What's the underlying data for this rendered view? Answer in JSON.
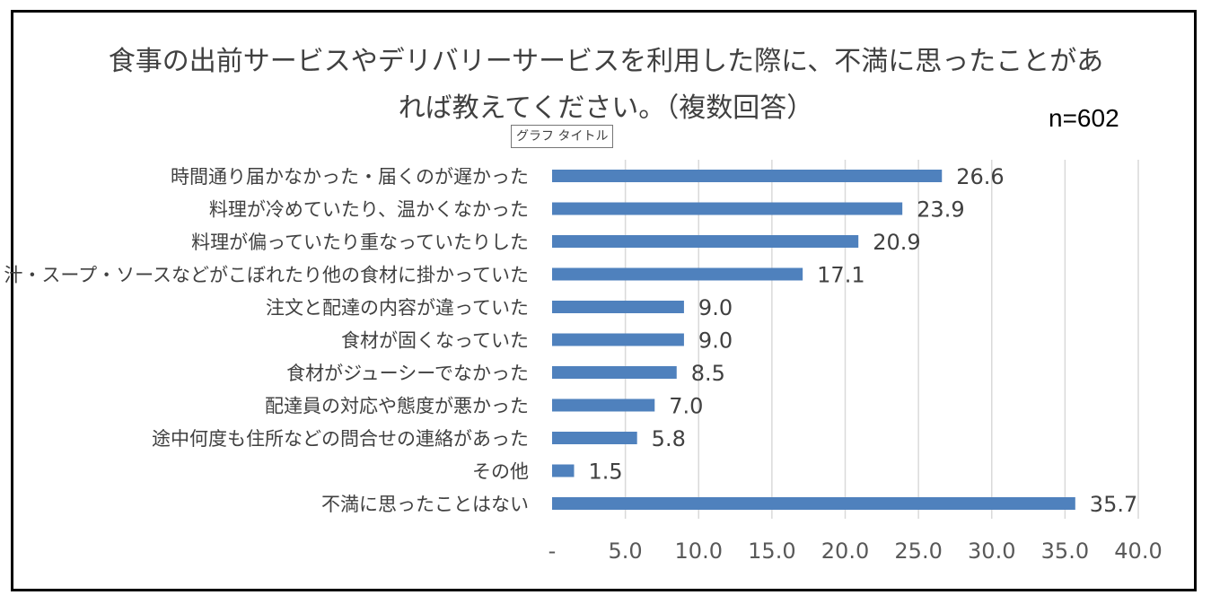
{
  "chart_data": {
    "type": "bar",
    "orientation": "horizontal",
    "title_line1": "食事の出前サービスやデリバリーサービスを利用した際に、不満に思ったことがあ",
    "title_line2": "れば教えてください。（複数回答）",
    "n_label": "n=602",
    "tooltip": "グラフ タイトル",
    "categories": [
      "時間通り届かなかった・届くのが遅かった",
      "料理が冷めていたり、温かくなかった",
      "料理が偏っていたり重なっていたりした",
      "汁・スープ・ソースなどがこぼれたり他の食材に掛かっていた",
      "注文と配達の内容が違っていた",
      "食材が固くなっていた",
      "食材がジューシーでなかった",
      "配達員の対応や態度が悪かった",
      "途中何度も住所などの問合せの連絡があった",
      "その他",
      "不満に思ったことはない"
    ],
    "values": [
      26.6,
      23.9,
      20.9,
      17.1,
      9.0,
      9.0,
      8.5,
      7.0,
      5.8,
      1.5,
      35.7
    ],
    "value_labels": [
      "26.6",
      "23.9",
      "20.9",
      "17.1",
      "9.0",
      "9.0",
      "8.5",
      "7.0",
      "5.8",
      "1.5",
      "35.7"
    ],
    "x_ticks": [
      "-",
      "5.0",
      "10.0",
      "15.0",
      "20.0",
      "25.0",
      "30.0",
      "35.0",
      "40.0"
    ],
    "xlim": [
      0,
      40
    ],
    "grid": true,
    "bar_color": "#4f81bd",
    "grid_color": "#d9d9d9"
  }
}
